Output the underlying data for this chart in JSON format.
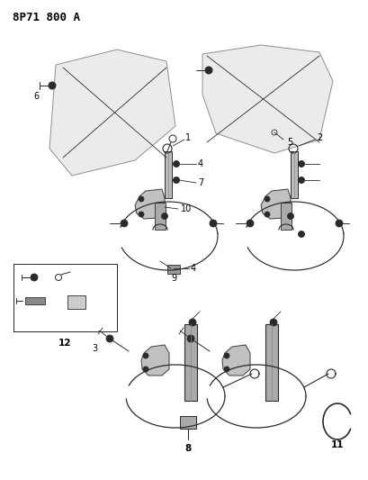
{
  "title": "8P71 800 A",
  "bg_color": "#ffffff",
  "line_color": "#2a2a2a",
  "label_color": "#000000",
  "title_fontsize": 9,
  "label_fontsize": 7,
  "figsize": [
    4.09,
    5.33
  ],
  "dpi": 100
}
